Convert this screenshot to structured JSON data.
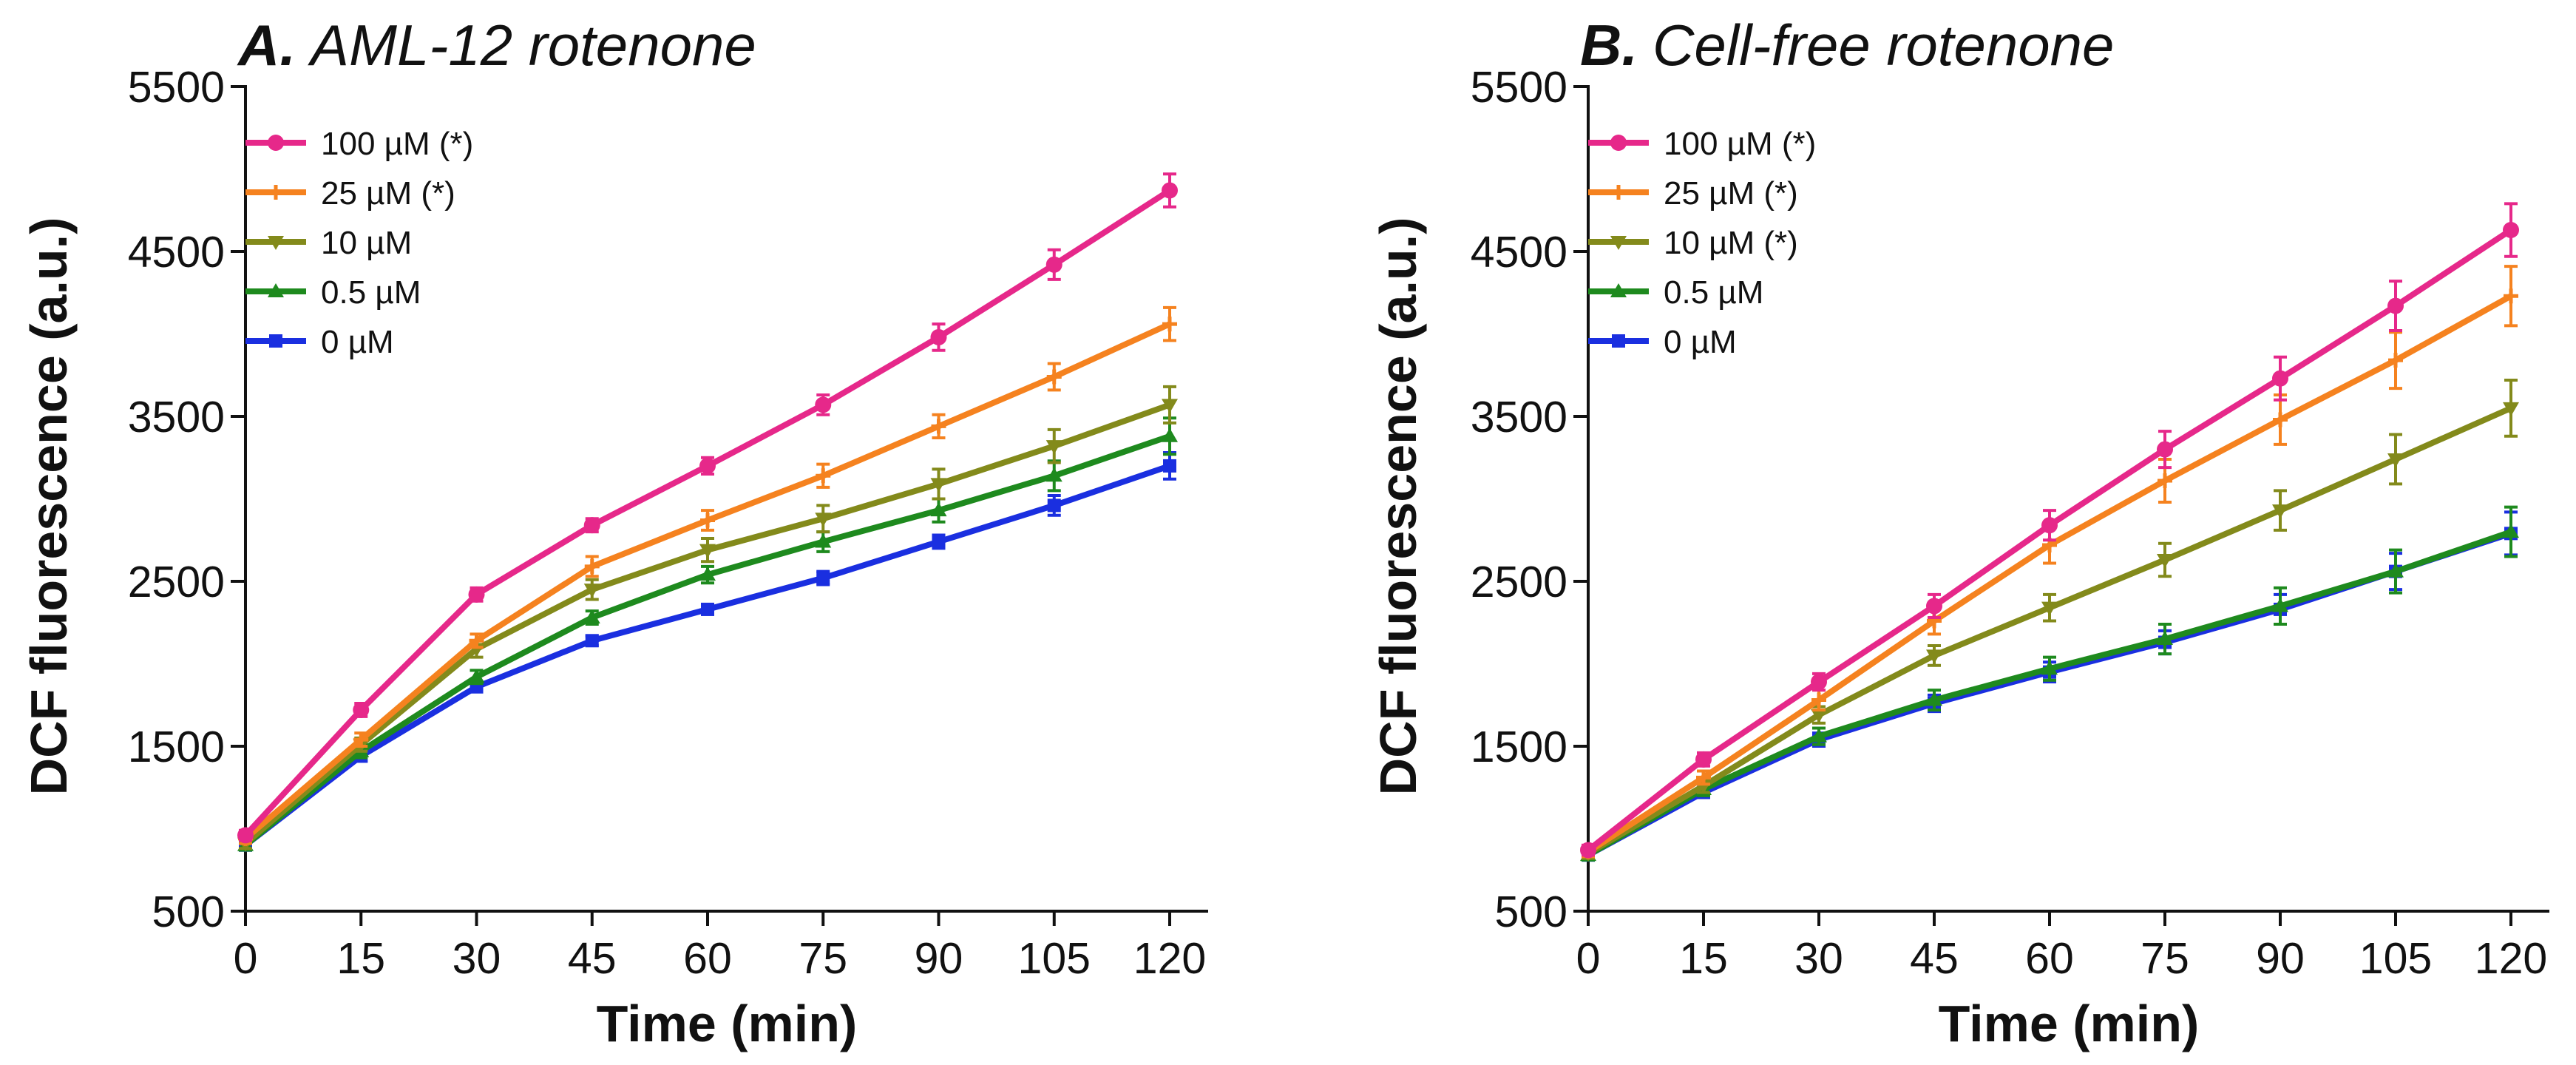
{
  "chart_data": [
    {
      "type": "line",
      "panel_letter": "A.",
      "title": "AML-12 rotenone",
      "xlabel": "Time (min)",
      "ylabel": "DCF fluorescence (a.u.)",
      "x": [
        0,
        15,
        30,
        45,
        60,
        75,
        90,
        105,
        120
      ],
      "xlim": [
        0,
        120
      ],
      "ylim": [
        500,
        5500
      ],
      "yticks": [
        500,
        1500,
        2500,
        3500,
        4500,
        5500
      ],
      "xticks": [
        0,
        15,
        30,
        45,
        60,
        75,
        90,
        105,
        120
      ],
      "legend_position": "top-left",
      "series": [
        {
          "name": "100 µM (*)",
          "color": "#e6288a",
          "marker": "circle",
          "values": [
            960,
            1720,
            2420,
            2840,
            3200,
            3570,
            3980,
            4420,
            4870
          ],
          "errors": [
            30,
            40,
            40,
            40,
            50,
            60,
            80,
            90,
            100
          ]
        },
        {
          "name": "25 µM (*)",
          "color": "#f5821f",
          "marker": "plus",
          "values": [
            940,
            1540,
            2140,
            2590,
            2870,
            3140,
            3440,
            3740,
            4060
          ],
          "errors": [
            30,
            40,
            40,
            60,
            60,
            70,
            70,
            80,
            100
          ]
        },
        {
          "name": "10 µM",
          "color": "#838a1b",
          "marker": "triangle-down",
          "values": [
            910,
            1510,
            2090,
            2450,
            2690,
            2880,
            3090,
            3320,
            3570
          ],
          "errors": [
            30,
            40,
            50,
            60,
            70,
            80,
            90,
            100,
            110
          ]
        },
        {
          "name": "0.5 µM",
          "color": "#1e8a1e",
          "marker": "triangle-up",
          "values": [
            900,
            1470,
            1920,
            2280,
            2540,
            2740,
            2930,
            3140,
            3380
          ],
          "errors": [
            30,
            40,
            40,
            40,
            50,
            60,
            70,
            90,
            110
          ]
        },
        {
          "name": "0 µM",
          "color": "#1a2fe0",
          "marker": "square",
          "values": [
            900,
            1440,
            1860,
            2140,
            2330,
            2520,
            2740,
            2960,
            3200
          ],
          "errors": [
            30,
            30,
            30,
            30,
            30,
            40,
            40,
            60,
            80
          ]
        }
      ]
    },
    {
      "type": "line",
      "panel_letter": "B.",
      "title": "Cell-free rotenone",
      "xlabel": "Time (min)",
      "ylabel": "DCF fluorescence (a.u.)",
      "x": [
        0,
        15,
        30,
        45,
        60,
        75,
        90,
        105,
        120
      ],
      "xlim": [
        0,
        120
      ],
      "ylim": [
        500,
        5500
      ],
      "yticks": [
        500,
        1500,
        2500,
        3500,
        4500,
        5500
      ],
      "xticks": [
        0,
        15,
        30,
        45,
        60,
        75,
        90,
        105,
        120
      ],
      "legend_position": "top-left",
      "series": [
        {
          "name": "100 µM (*)",
          "color": "#e6288a",
          "marker": "circle",
          "values": [
            870,
            1420,
            1890,
            2350,
            2840,
            3300,
            3730,
            4170,
            4630
          ],
          "errors": [
            30,
            40,
            50,
            70,
            90,
            110,
            130,
            150,
            160
          ]
        },
        {
          "name": "25 µM (*)",
          "color": "#f5821f",
          "marker": "plus",
          "values": [
            860,
            1310,
            1780,
            2260,
            2720,
            3110,
            3480,
            3840,
            4230
          ],
          "errors": [
            30,
            40,
            60,
            80,
            110,
            130,
            150,
            170,
            180
          ]
        },
        {
          "name": "10 µM (*)",
          "color": "#838a1b",
          "marker": "triangle-down",
          "values": [
            850,
            1260,
            1690,
            2050,
            2340,
            2630,
            2930,
            3240,
            3550
          ],
          "errors": [
            30,
            40,
            50,
            60,
            80,
            100,
            120,
            150,
            170
          ]
        },
        {
          "name": "0.5 µM",
          "color": "#1e8a1e",
          "marker": "triangle-up",
          "values": [
            840,
            1240,
            1560,
            1780,
            1970,
            2150,
            2350,
            2560,
            2800
          ],
          "errors": [
            30,
            40,
            50,
            60,
            70,
            90,
            110,
            130,
            150
          ]
        },
        {
          "name": "0 µM",
          "color": "#1a2fe0",
          "marker": "square",
          "values": [
            840,
            1220,
            1540,
            1760,
            1950,
            2130,
            2330,
            2560,
            2790
          ],
          "errors": [
            30,
            30,
            40,
            50,
            60,
            70,
            90,
            110,
            130
          ]
        }
      ]
    }
  ]
}
